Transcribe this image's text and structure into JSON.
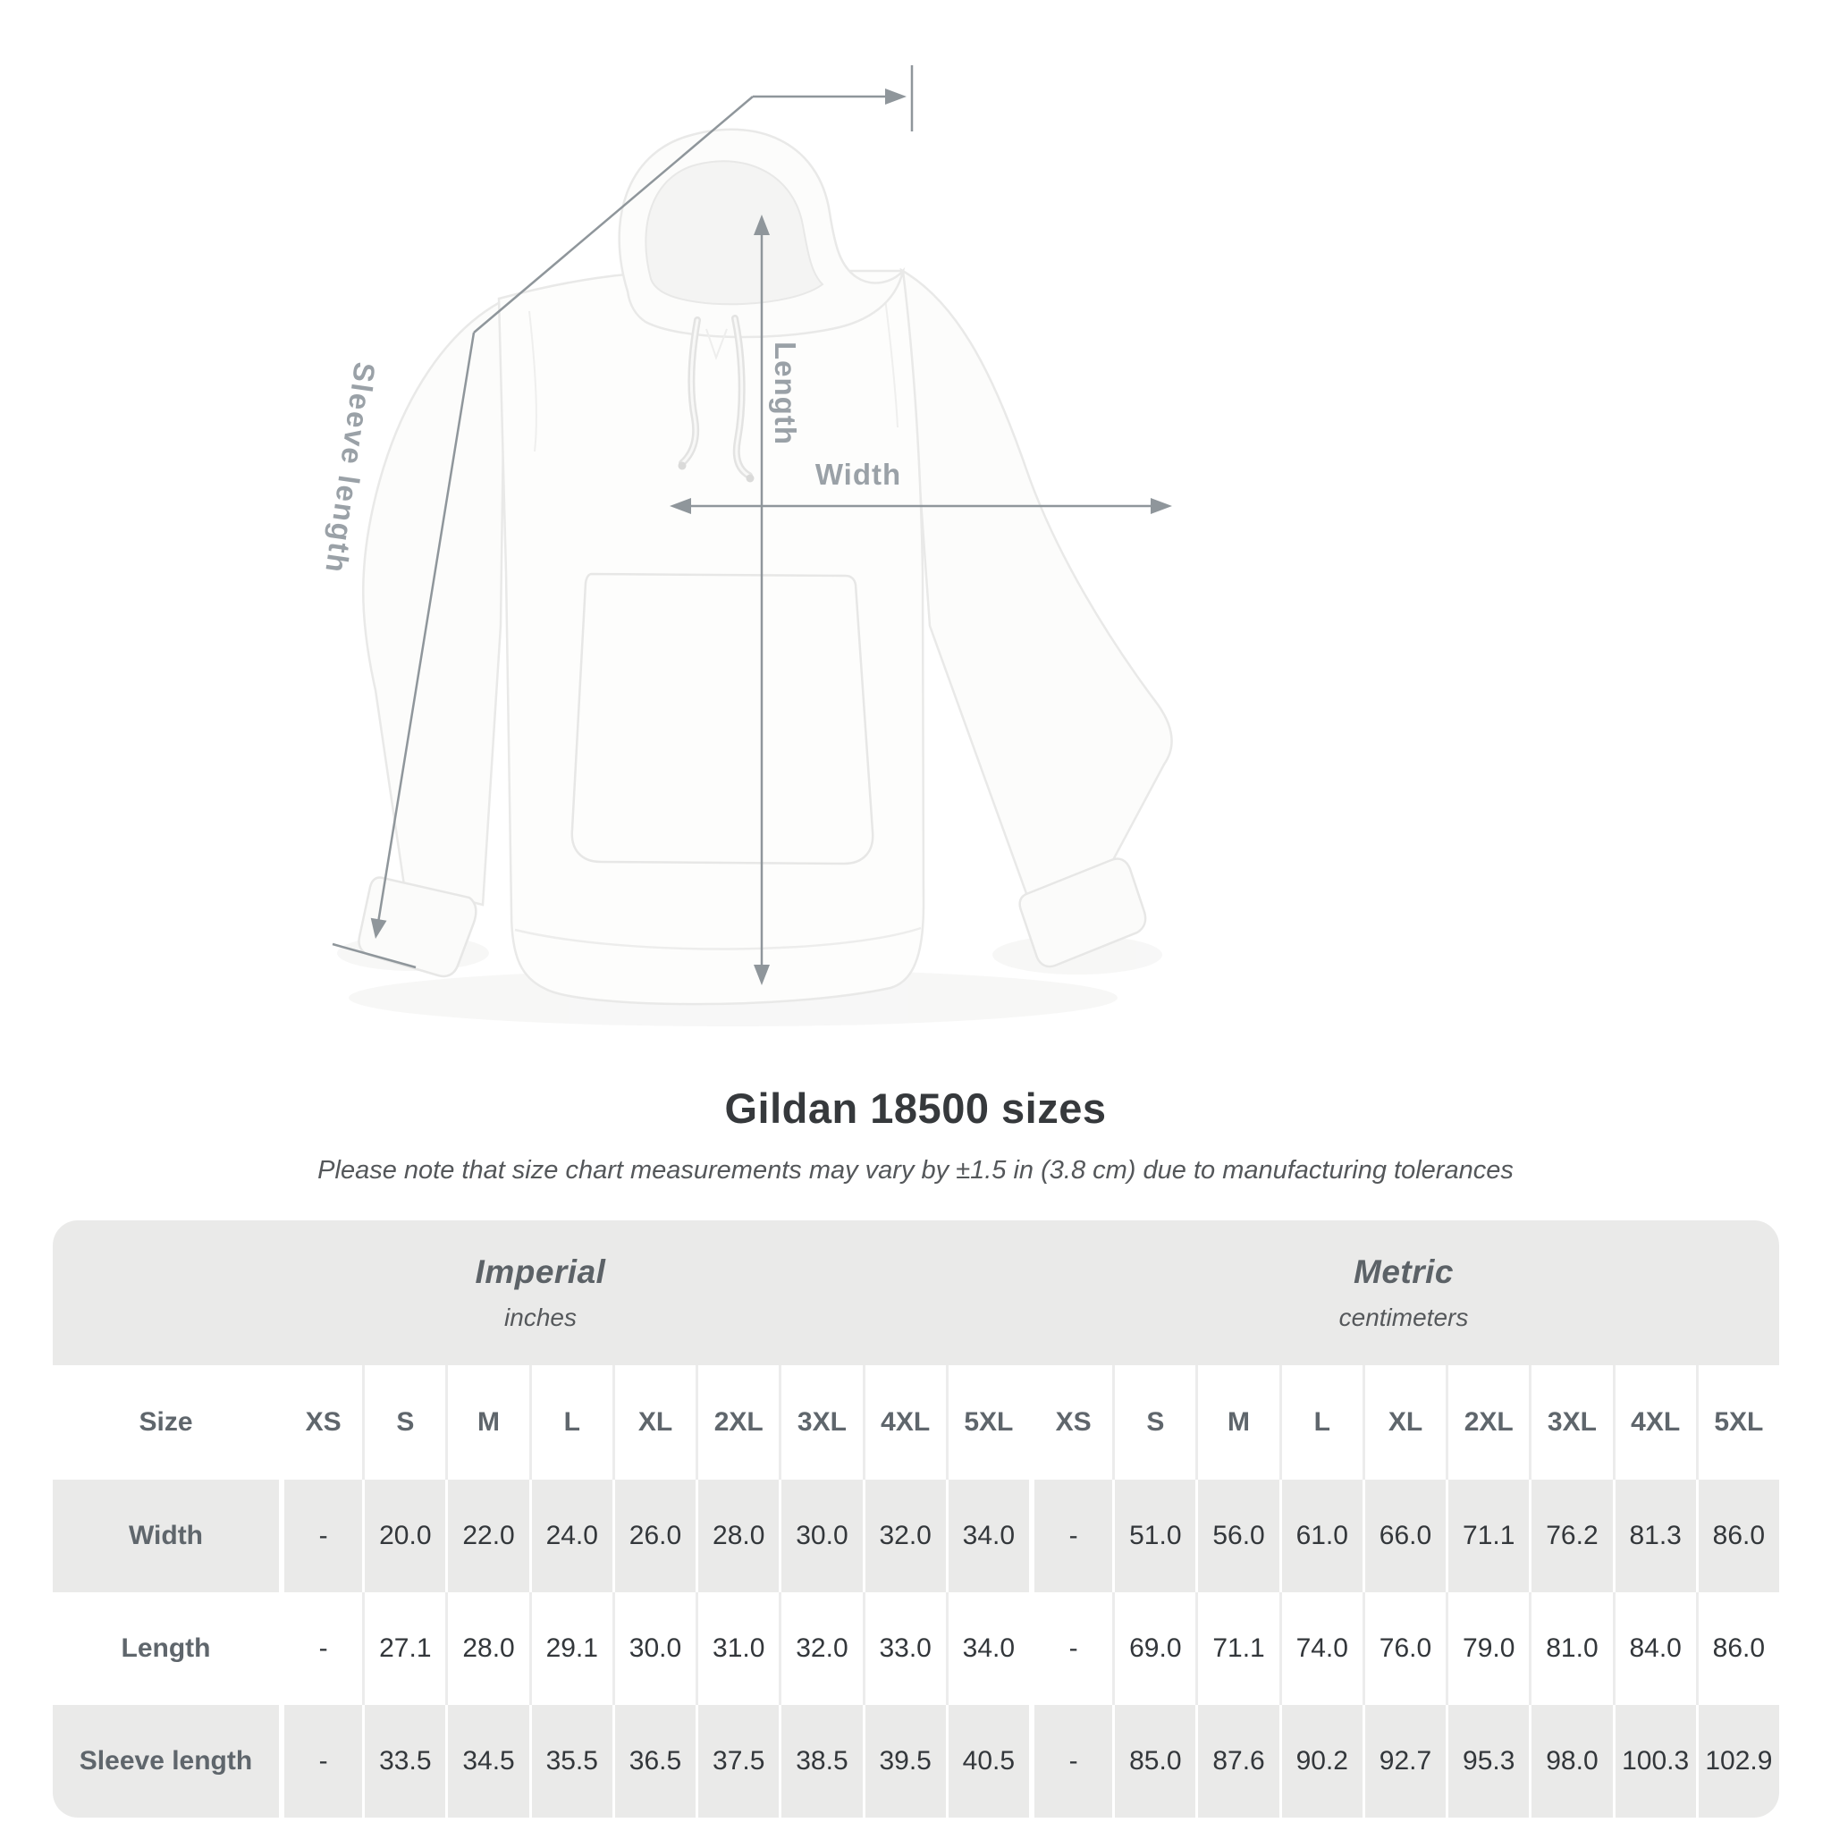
{
  "diagram": {
    "length_label": "Length",
    "width_label": "Width",
    "sleeve_label": "Sleeve length"
  },
  "chart_data": {
    "type": "table",
    "title": "Gildan 18500 sizes",
    "note": "Please note that size chart measurements may vary by ±1.5 in (3.8 cm) due to manufacturing tolerances",
    "sections": [
      {
        "name": "Imperial",
        "unit": "inches"
      },
      {
        "name": "Metric",
        "unit": "centimeters"
      }
    ],
    "size_column_label": "Size",
    "size_headers": [
      "XS",
      "S",
      "M",
      "L",
      "XL",
      "2XL",
      "3XL",
      "4XL",
      "5XL"
    ],
    "rows": [
      {
        "label": "Width",
        "imperial": [
          "-",
          "20.0",
          "22.0",
          "24.0",
          "26.0",
          "28.0",
          "30.0",
          "32.0",
          "34.0"
        ],
        "metric": [
          "-",
          "51.0",
          "56.0",
          "61.0",
          "66.0",
          "71.1",
          "76.2",
          "81.3",
          "86.0"
        ]
      },
      {
        "label": "Length",
        "imperial": [
          "-",
          "27.1",
          "28.0",
          "29.1",
          "30.0",
          "31.0",
          "32.0",
          "33.0",
          "34.0"
        ],
        "metric": [
          "-",
          "69.0",
          "71.1",
          "74.0",
          "76.0",
          "79.0",
          "81.0",
          "84.0",
          "86.0"
        ]
      },
      {
        "label": "Sleeve length",
        "imperial": [
          "-",
          "33.5",
          "34.5",
          "35.5",
          "36.5",
          "37.5",
          "38.5",
          "39.5",
          "40.5"
        ],
        "metric": [
          "-",
          "85.0",
          "87.6",
          "90.2",
          "92.7",
          "95.3",
          "98.0",
          "100.3",
          "102.9"
        ]
      }
    ]
  },
  "colors": {
    "table_band": "#eaeae9",
    "row_alt": "#eaeae9",
    "measure_line": "#8f969b",
    "measure_label": "#9aa1a7",
    "value_text": "#33373b",
    "header_text": "#5f666c"
  }
}
